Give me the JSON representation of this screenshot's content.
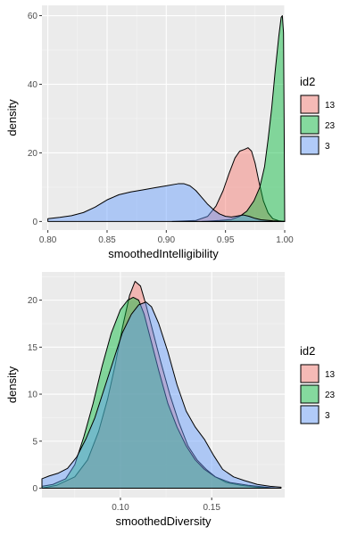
{
  "chart_data": [
    {
      "type": "area",
      "xlabel": "smoothedIntelligibility",
      "ylabel": "density",
      "xlim": [
        0.795,
        1.0
      ],
      "ylim": [
        -2.5,
        63
      ],
      "xticks": [
        0.8,
        0.85,
        0.9,
        0.95,
        1.0
      ],
      "xtick_labels": [
        "0.80",
        "0.85",
        "0.90",
        "0.95",
        "1.00"
      ],
      "yticks": [
        0,
        20,
        40,
        60
      ],
      "ytick_labels": [
        "0",
        "20",
        "40",
        "60"
      ],
      "grid": true,
      "legend": {
        "title": "id2",
        "position": "right"
      },
      "series": [
        {
          "name": "13",
          "color": "#f8766d",
          "points": [
            [
              0.905,
              0
            ],
            [
              0.925,
              0.3
            ],
            [
              0.935,
              1.5
            ],
            [
              0.942,
              4.5
            ],
            [
              0.948,
              9
            ],
            [
              0.953,
              14
            ],
            [
              0.958,
              18.5
            ],
            [
              0.962,
              20.5
            ],
            [
              0.966,
              21
            ],
            [
              0.969,
              21.5
            ],
            [
              0.972,
              20.5
            ],
            [
              0.975,
              17
            ],
            [
              0.978,
              12
            ],
            [
              0.982,
              6
            ],
            [
              0.986,
              2.5
            ],
            [
              0.99,
              0.8
            ],
            [
              0.995,
              0.2
            ],
            [
              1.0,
              0
            ]
          ]
        },
        {
          "name": "23",
          "color": "#00ba38",
          "points": [
            [
              0.93,
              0
            ],
            [
              0.945,
              0.3
            ],
            [
              0.955,
              0.6
            ],
            [
              0.962,
              1.5
            ],
            [
              0.968,
              3
            ],
            [
              0.974,
              6
            ],
            [
              0.979,
              10
            ],
            [
              0.983,
              16
            ],
            [
              0.986,
              24
            ],
            [
              0.989,
              33
            ],
            [
              0.992,
              44
            ],
            [
              0.995,
              54
            ],
            [
              0.997,
              59.5
            ],
            [
              0.998,
              60
            ],
            [
              0.999,
              55
            ],
            [
              0.9995,
              30
            ],
            [
              1.0,
              0
            ]
          ]
        },
        {
          "name": "3",
          "color": "#619cff",
          "points": [
            [
              0.8,
              0.8
            ],
            [
              0.81,
              1.2
            ],
            [
              0.82,
              1.7
            ],
            [
              0.83,
              2.6
            ],
            [
              0.84,
              4.2
            ],
            [
              0.85,
              6.3
            ],
            [
              0.86,
              7.8
            ],
            [
              0.87,
              8.6
            ],
            [
              0.88,
              9.2
            ],
            [
              0.89,
              9.8
            ],
            [
              0.9,
              10.4
            ],
            [
              0.91,
              11.0
            ],
            [
              0.915,
              11.0
            ],
            [
              0.92,
              10.4
            ],
            [
              0.925,
              9.0
            ],
            [
              0.93,
              7.0
            ],
            [
              0.935,
              5.0
            ],
            [
              0.94,
              3.4
            ],
            [
              0.945,
              2.2
            ],
            [
              0.95,
              1.5
            ],
            [
              0.955,
              1.3
            ],
            [
              0.96,
              1.6
            ],
            [
              0.965,
              1.9
            ],
            [
              0.97,
              1.5
            ],
            [
              0.975,
              0.9
            ],
            [
              0.98,
              0.5
            ],
            [
              0.99,
              0.2
            ],
            [
              1.0,
              0
            ]
          ]
        }
      ]
    },
    {
      "type": "area",
      "xlabel": "smoothedDiversity",
      "ylabel": "density",
      "xlim": [
        0.057,
        0.19
      ],
      "ylim": [
        -1,
        23
      ],
      "xticks": [
        0.1,
        0.15
      ],
      "xtick_labels": [
        "0.10",
        "0.15"
      ],
      "yticks": [
        0,
        5,
        10,
        15,
        20
      ],
      "ytick_labels": [
        "0",
        "5",
        "10",
        "15",
        "20"
      ],
      "grid": true,
      "legend": {
        "title": "id2",
        "position": "right"
      },
      "series": [
        {
          "name": "13",
          "color": "#f8766d",
          "points": [
            [
              0.057,
              0
            ],
            [
              0.065,
              0.3
            ],
            [
              0.075,
              1.2
            ],
            [
              0.082,
              3
            ],
            [
              0.088,
              6
            ],
            [
              0.093,
              9.5
            ],
            [
              0.097,
              13
            ],
            [
              0.101,
              17
            ],
            [
              0.105,
              20.5
            ],
            [
              0.108,
              22
            ],
            [
              0.111,
              21.5
            ],
            [
              0.114,
              19.5
            ],
            [
              0.118,
              16.5
            ],
            [
              0.122,
              13.5
            ],
            [
              0.127,
              10
            ],
            [
              0.132,
              7
            ],
            [
              0.137,
              4.5
            ],
            [
              0.142,
              3
            ],
            [
              0.147,
              2
            ],
            [
              0.152,
              1.2
            ],
            [
              0.158,
              0.6
            ],
            [
              0.166,
              0.3
            ],
            [
              0.175,
              0.1
            ],
            [
              0.185,
              0
            ]
          ]
        },
        {
          "name": "23",
          "color": "#00ba38",
          "points": [
            [
              0.057,
              0.2
            ],
            [
              0.063,
              0.4
            ],
            [
              0.07,
              1.0
            ],
            [
              0.075,
              2.5
            ],
            [
              0.08,
              5.5
            ],
            [
              0.085,
              9
            ],
            [
              0.09,
              13
            ],
            [
              0.095,
              16.5
            ],
            [
              0.1,
              19
            ],
            [
              0.104,
              20
            ],
            [
              0.107,
              20.3
            ],
            [
              0.11,
              20
            ],
            [
              0.113,
              18.5
            ],
            [
              0.117,
              15.5
            ],
            [
              0.121,
              12.5
            ],
            [
              0.126,
              9
            ],
            [
              0.131,
              6.5
            ],
            [
              0.136,
              4.5
            ],
            [
              0.141,
              3
            ],
            [
              0.146,
              2
            ],
            [
              0.152,
              1.2
            ],
            [
              0.16,
              0.6
            ],
            [
              0.17,
              0.3
            ],
            [
              0.185,
              0
            ]
          ]
        },
        {
          "name": "3",
          "color": "#619cff",
          "points": [
            [
              0.057,
              1.0
            ],
            [
              0.061,
              1.3
            ],
            [
              0.066,
              1.6
            ],
            [
              0.071,
              2.1
            ],
            [
              0.076,
              3.3
            ],
            [
              0.081,
              5.2
            ],
            [
              0.086,
              7.5
            ],
            [
              0.091,
              10.5
            ],
            [
              0.096,
              13.5
            ],
            [
              0.101,
              16.5
            ],
            [
              0.106,
              18.5
            ],
            [
              0.11,
              19.5
            ],
            [
              0.114,
              19.8
            ],
            [
              0.117,
              19.3
            ],
            [
              0.121,
              17.5
            ],
            [
              0.126,
              14.5
            ],
            [
              0.131,
              11
            ],
            [
              0.136,
              8.2
            ],
            [
              0.141,
              6.5
            ],
            [
              0.146,
              5.2
            ],
            [
              0.151,
              3.5
            ],
            [
              0.156,
              2.0
            ],
            [
              0.162,
              1.2
            ],
            [
              0.168,
              0.8
            ],
            [
              0.175,
              0.4
            ],
            [
              0.182,
              0.2
            ],
            [
              0.188,
              0.1
            ]
          ]
        }
      ]
    }
  ]
}
